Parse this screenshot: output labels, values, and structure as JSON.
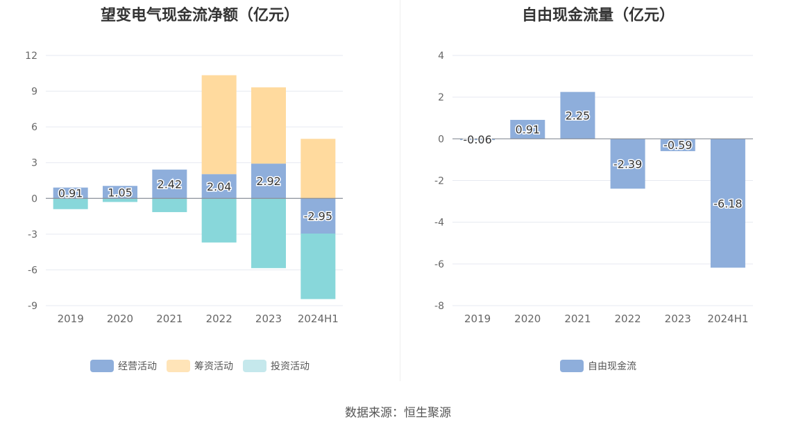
{
  "left_chart": {
    "title": "望变电气现金流净额（亿元）",
    "legend": [
      {
        "name": "经营活动",
        "color": "#8EAEDB"
      },
      {
        "name": "筹资活动",
        "color": "#FFDA9E"
      },
      {
        "name": "投资活动",
        "color": "#C5E8EC"
      }
    ]
  },
  "right_chart": {
    "title": "自由现金流量（亿元）",
    "legend": [
      {
        "name": "自由现金流",
        "color": "#8EAEDB"
      }
    ]
  },
  "source": "数据来源：恒生聚源",
  "chart_data": [
    {
      "type": "bar",
      "stacked": true,
      "title": "望变电气现金流净额（亿元）",
      "categories": [
        "2019",
        "2020",
        "2021",
        "2022",
        "2023",
        "2024H1"
      ],
      "ylim": [
        -9,
        12
      ],
      "yticks": [
        "12",
        "9",
        "6",
        "3",
        "0",
        "-3",
        "-6",
        "-9"
      ],
      "grid": true,
      "legend_position": "bottom",
      "series": [
        {
          "name": "经营活动",
          "color": "#8EAEDB",
          "values": [
            0.91,
            1.05,
            2.42,
            2.04,
            2.92,
            -2.95
          ],
          "labels": [
            "0.91",
            "1.05",
            "2.42",
            "2.04",
            "2.92",
            "-2.95"
          ]
        },
        {
          "name": "筹资活动",
          "color": "#FFDA9E",
          "values": [
            0.0,
            0.0,
            0.0,
            8.3,
            6.4,
            5.0
          ]
        },
        {
          "name": "投资活动",
          "color": "#88D7DA",
          "values": [
            -0.9,
            -0.3,
            -1.15,
            -3.7,
            -5.85,
            -5.5
          ]
        }
      ]
    },
    {
      "type": "bar",
      "title": "自由现金流量（亿元）",
      "categories": [
        "2019",
        "2020",
        "2021",
        "2022",
        "2023",
        "2024H1"
      ],
      "ylim": [
        -8,
        4
      ],
      "yticks": [
        "4",
        "2",
        "0",
        "-2",
        "-4",
        "-6",
        "-8"
      ],
      "grid": true,
      "legend_position": "bottom",
      "series": [
        {
          "name": "自由现金流",
          "color": "#8EAEDB",
          "values": [
            -0.06,
            0.91,
            2.25,
            -2.39,
            -0.59,
            -6.18
          ],
          "labels": [
            "-0.06",
            "0.91",
            "2.25",
            "-2.39",
            "-0.59",
            "-6.18"
          ]
        }
      ]
    }
  ]
}
